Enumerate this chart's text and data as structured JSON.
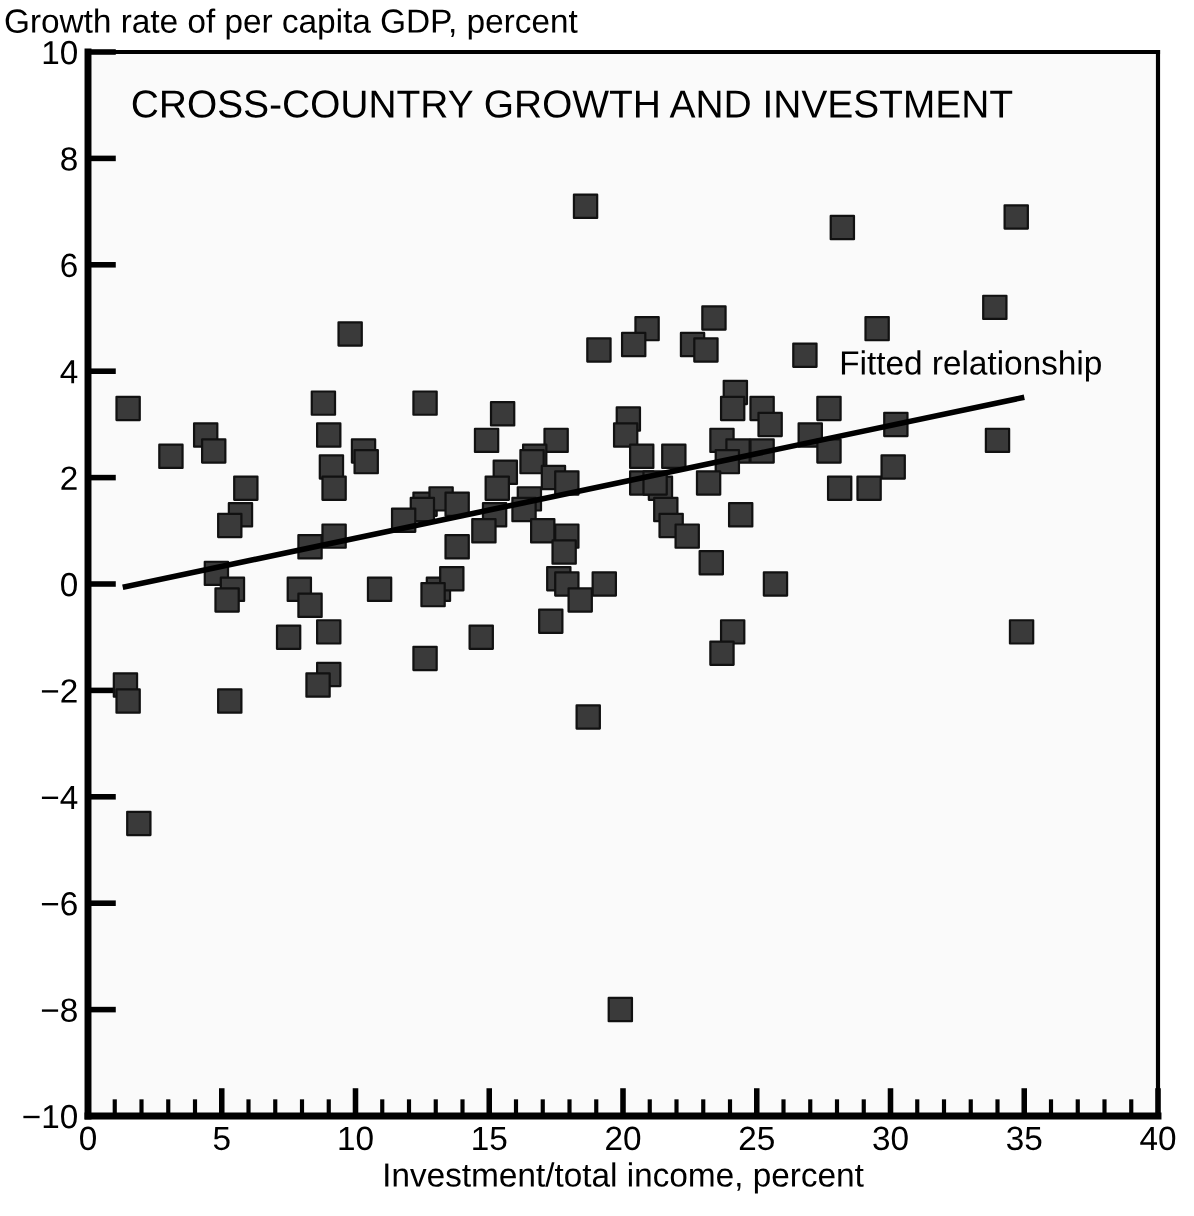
{
  "chart_data": {
    "type": "scatter",
    "title": "CROSS-COUNTRY GROWTH AND INVESTMENT",
    "xlabel": "Investment/total income, percent",
    "ylabel": "Growth rate of per capita GDP, percent",
    "xlim": [
      0,
      40
    ],
    "ylim": [
      -10,
      10
    ],
    "xticks": [
      0,
      {
        "value": 1,
        "label": null
      },
      {
        "value": 2,
        "label": null
      },
      {
        "value": 3,
        "label": null
      },
      {
        "value": 4,
        "label": null
      },
      5,
      {
        "value": 6,
        "label": null
      },
      {
        "value": 7,
        "label": null
      },
      {
        "value": 8,
        "label": null
      },
      {
        "value": 9,
        "label": null
      },
      10,
      {
        "value": 11,
        "label": null
      },
      {
        "value": 12,
        "label": null
      },
      {
        "value": 13,
        "label": null
      },
      {
        "value": 14,
        "label": null
      },
      15,
      {
        "value": 16,
        "label": null
      },
      {
        "value": 17,
        "label": null
      },
      {
        "value": 18,
        "label": null
      },
      {
        "value": 19,
        "label": null
      },
      20,
      {
        "value": 21,
        "label": null
      },
      {
        "value": 22,
        "label": null
      },
      {
        "value": 23,
        "label": null
      },
      {
        "value": 24,
        "label": null
      },
      25,
      {
        "value": 26,
        "label": null
      },
      {
        "value": 27,
        "label": null
      },
      {
        "value": 28,
        "label": null
      },
      {
        "value": 29,
        "label": null
      },
      30,
      {
        "value": 31,
        "label": null
      },
      {
        "value": 32,
        "label": null
      },
      {
        "value": 33,
        "label": null
      },
      {
        "value": 34,
        "label": null
      },
      35,
      {
        "value": 36,
        "label": null
      },
      {
        "value": 37,
        "label": null
      },
      {
        "value": 38,
        "label": null
      },
      {
        "value": 39,
        "label": null
      },
      40
    ],
    "yticks": [
      {
        "value": -10,
        "label": "−10"
      },
      {
        "value": -8,
        "label": "−8"
      },
      {
        "value": -6,
        "label": "−6"
      },
      {
        "value": -4,
        "label": "−4"
      },
      {
        "value": -2,
        "label": "−2"
      },
      0,
      2,
      4,
      6,
      8,
      10
    ],
    "grid": false,
    "annotations": [
      "Fitted relationship"
    ],
    "series": [
      {
        "marker": "square",
        "color": "#3a3a3a",
        "x": [
          18.6,
          9.8,
          19.1,
          1.5,
          8.8,
          12.6,
          15.5,
          4.4,
          4.7,
          3.1,
          9.0,
          10.3,
          10.4,
          14.9,
          17.5,
          16.7,
          16.6,
          9.1,
          9.2,
          5.9,
          5.7,
          5.3,
          15.6,
          15.3,
          17.4,
          17.9,
          12.6,
          13.2,
          13.8,
          12.5,
          11.8,
          16.5,
          16.3,
          15.2,
          14.8,
          9.2,
          8.3,
          13.8,
          17.0,
          17.9,
          17.8,
          4.8,
          5.4,
          5.2,
          7.9,
          8.3,
          10.9,
          13.1,
          13.6,
          12.9,
          17.6,
          17.9,
          18.4,
          19.3,
          17.3,
          7.5,
          9.0,
          9.0,
          8.6,
          1.4,
          1.5,
          5.3,
          1.9,
          14.7,
          12.6,
          18.7,
          25.7,
          24.1,
          23.7,
          34.9,
          19.9,
          28.2,
          34.7,
          33.9,
          29.5,
          23.4,
          20.9,
          20.4,
          22.6,
          23.1,
          26.8,
          24.2,
          24.1,
          25.2,
          25.5,
          27.7,
          20.2,
          20.1,
          20.7,
          21.9,
          23.7,
          24.3,
          23.9,
          25.2,
          27.0,
          27.7,
          30.2,
          34.0,
          30.1,
          28.1,
          29.2,
          20.7,
          21.4,
          21.2,
          23.2,
          21.6,
          21.8,
          22.4,
          24.4,
          23.3
        ],
        "values": [
          7.1,
          4.7,
          4.4,
          3.3,
          3.4,
          3.4,
          3.2,
          2.8,
          2.5,
          2.4,
          2.8,
          2.5,
          2.3,
          2.7,
          2.7,
          2.4,
          2.3,
          2.2,
          1.8,
          1.8,
          1.3,
          1.1,
          2.1,
          1.8,
          2.0,
          1.9,
          1.5,
          1.6,
          1.5,
          1.4,
          1.2,
          1.6,
          1.4,
          1.3,
          1.0,
          0.9,
          0.7,
          0.7,
          1.0,
          0.9,
          0.6,
          0.2,
          -0.1,
          -0.3,
          -0.1,
          -0.4,
          -0.1,
          -0.1,
          0.1,
          -0.2,
          0.1,
          0.0,
          -0.3,
          0.0,
          -0.7,
          -1.0,
          -0.9,
          -1.7,
          -1.9,
          -1.9,
          -2.2,
          -2.2,
          -4.5,
          -1.0,
          -1.4,
          -2.5,
          0.0,
          -0.9,
          -1.3,
          -0.9,
          -8.0,
          6.7,
          6.9,
          5.2,
          4.8,
          5.0,
          4.8,
          4.5,
          4.5,
          4.4,
          4.3,
          3.6,
          3.3,
          3.3,
          3.0,
          3.3,
          3.1,
          2.8,
          2.4,
          2.4,
          2.7,
          2.5,
          2.3,
          2.5,
          2.8,
          2.5,
          3.0,
          2.7,
          2.2,
          1.8,
          1.8,
          1.9,
          1.8,
          1.9,
          1.9,
          1.4,
          1.1,
          0.9,
          1.3,
          0.4
        ]
      },
      {
        "type": "line",
        "color": "#000000",
        "x": [
          1.4,
          34.9
        ],
        "values": [
          -0.05,
          3.5
        ]
      }
    ]
  }
}
